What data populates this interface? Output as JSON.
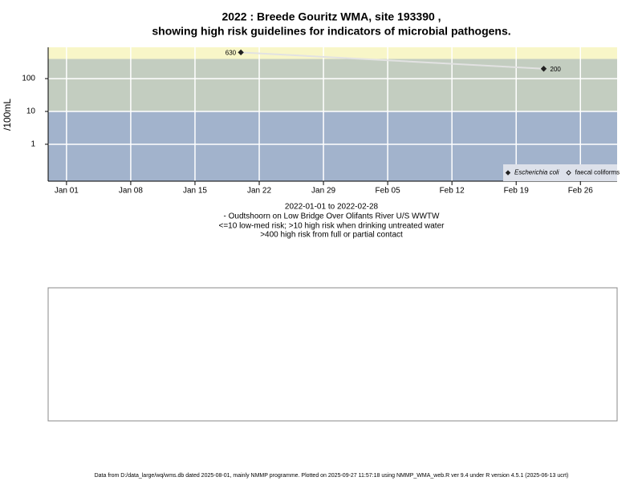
{
  "chart_data": {
    "type": "line",
    "title": [
      "2022 : Breede Gouritz WMA, site 193390 ,",
      "showing high risk guidelines for indicators of microbial pathogens."
    ],
    "subtitle": [
      "2022-01-01 to 2022-02-28",
      "- Oudtshoorn on Low Bridge Over Olifants River U/S WWTW",
      "<=10 low-med risk; >10 high risk when drinking untreated water",
      ">400 high risk from full or partial contact"
    ],
    "ylabel": "/100mL",
    "footer": "Data from D:/data_large/wq/wms.db dated 2025-08-01, mainly NMMP programme. Plotted on 2025-09-27 11:57:18 using NMMP_WMA_web.R ver 9.4 under R version 4.5.1 (2025-06-13 ucrt)",
    "log_y": true,
    "grid": true,
    "legend_position": "bottom-right",
    "xlim": [
      "2021-12-30",
      "2022-03-02"
    ],
    "xticks": [
      {
        "value": "2022-01-01",
        "label": "Jan 01"
      },
      {
        "value": "2022-01-08",
        "label": "Jan 08"
      },
      {
        "value": "2022-01-15",
        "label": "Jan 15"
      },
      {
        "value": "2022-01-22",
        "label": "Jan 22"
      },
      {
        "value": "2022-01-29",
        "label": "Jan 29"
      },
      {
        "value": "2022-02-05",
        "label": "Feb 05"
      },
      {
        "value": "2022-02-12",
        "label": "Feb 12"
      },
      {
        "value": "2022-02-19",
        "label": "Feb 19"
      },
      {
        "value": "2022-02-26",
        "label": "Feb 26"
      }
    ],
    "ylim": [
      0.075,
      900
    ],
    "yticks": [
      1,
      10,
      100
    ],
    "thresholds": [
      10,
      400
    ],
    "band_colors": [
      "#a2b3cc",
      "#c3cdc0",
      "#f8f6c8"
    ],
    "series": [
      {
        "name": "Escherichia coli",
        "color": "#222222",
        "line_color": "#e2e2e2",
        "marker_filled": true,
        "x": [
          "2022-01-20",
          "2022-02-22"
        ],
        "values": [
          630,
          200
        ]
      },
      {
        "name": "faecal coliforms",
        "color": "#222222",
        "line_color": "#e2e2e2",
        "marker_filled": false,
        "x": [],
        "values": []
      }
    ]
  }
}
